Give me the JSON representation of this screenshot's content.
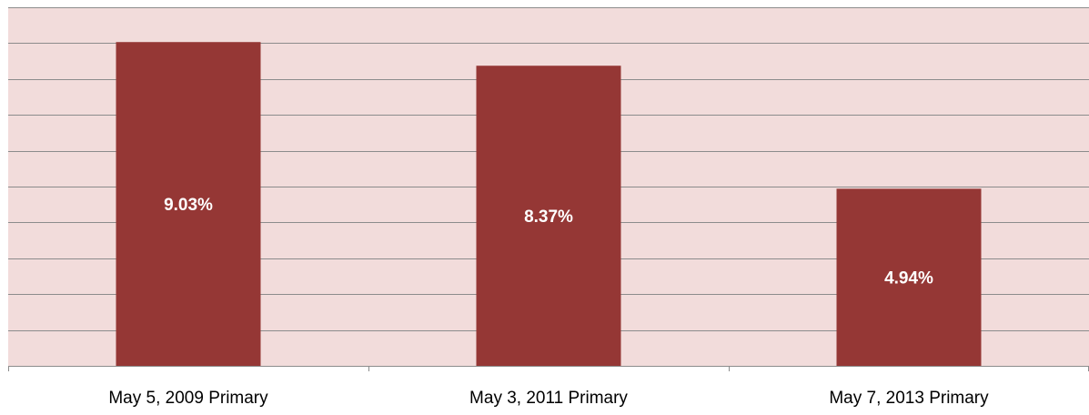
{
  "chart_data": {
    "type": "bar",
    "categories": [
      "May 5, 2009 Primary",
      "May 3, 2011 Primary",
      "May 7, 2013 Primary"
    ],
    "values": [
      9.03,
      8.37,
      4.94
    ],
    "value_labels": [
      "9.03%",
      "8.37%",
      "4.94%"
    ],
    "title": "",
    "xlabel": "",
    "ylabel": "",
    "ylim": [
      0,
      10
    ],
    "grid": true,
    "legend": "none"
  },
  "colors": {
    "plot_background": "#f2dcdb",
    "bar": "#953735",
    "gridline": "#8c8c8c",
    "axis": "#8c8c8c",
    "value_label": "#ffffff",
    "category_label": "#000000"
  }
}
